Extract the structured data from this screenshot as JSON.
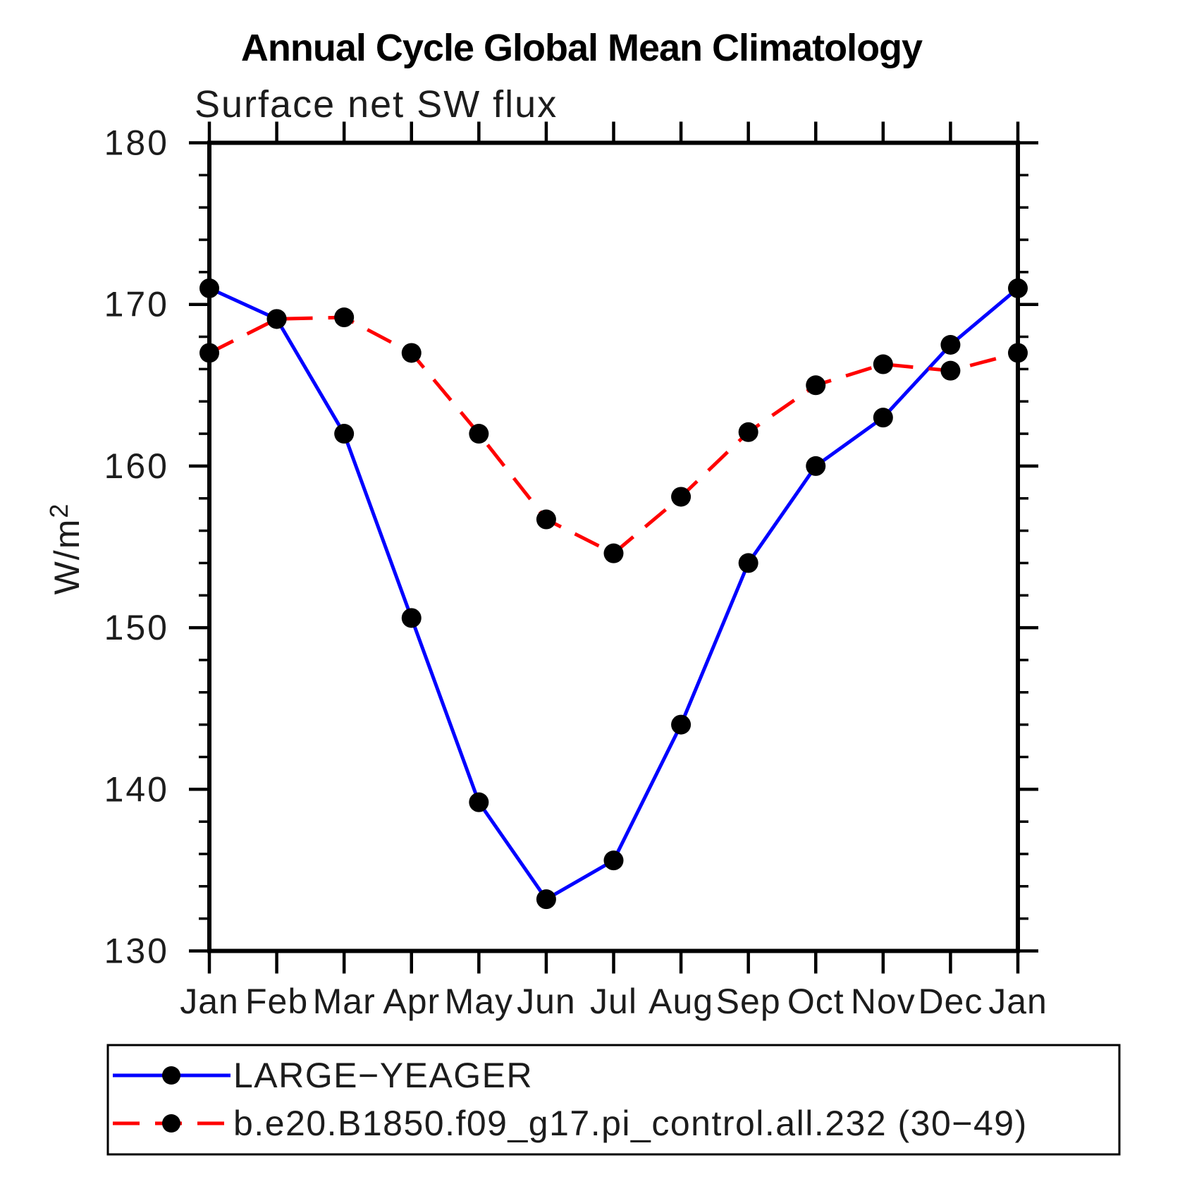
{
  "chart_data": {
    "type": "line",
    "title": "Annual Cycle Global Mean Climatology",
    "subtitle": "Surface net SW flux",
    "ylabel": "W/m²",
    "ylabel_base": "W/m",
    "ylabel_exp": "2",
    "categories": [
      "Jan",
      "Feb",
      "Mar",
      "Apr",
      "May",
      "Jun",
      "Jul",
      "Aug",
      "Sep",
      "Oct",
      "Nov",
      "Dec",
      "Jan"
    ],
    "ylim": [
      130,
      180
    ],
    "ytick_major": [
      130,
      140,
      150,
      160,
      170,
      180
    ],
    "ytick_minor_step": 2,
    "grid": false,
    "legend_position": "bottom-left-box",
    "axis_color": "#000000",
    "marker_shape": "filled-circle",
    "series": [
      {
        "name": "LARGE−YEAGER",
        "color": "#0000ff",
        "line_style": "solid",
        "marker_color": "#000000",
        "values": [
          171.0,
          169.1,
          162.0,
          150.6,
          139.2,
          133.2,
          135.6,
          144.0,
          154.0,
          160.0,
          163.0,
          167.5,
          171.0
        ]
      },
      {
        "name": "b.e20.B1850.f09_g17.pi_control.all.232 (30−49)",
        "color": "#ff0000",
        "line_style": "dashed",
        "marker_color": "#000000",
        "values": [
          167.0,
          169.1,
          169.2,
          167.0,
          162.0,
          156.7,
          154.6,
          158.1,
          162.1,
          165.0,
          166.3,
          165.9,
          167.0
        ]
      }
    ]
  }
}
